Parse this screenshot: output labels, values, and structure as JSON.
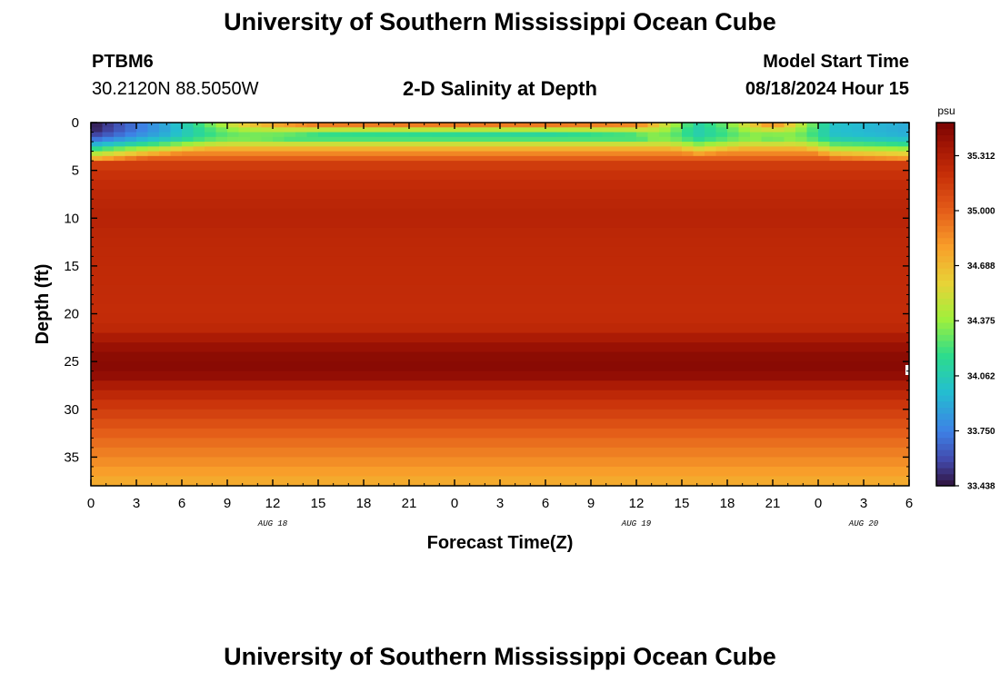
{
  "page_title": "University of Southern Mississippi Ocean Cube",
  "footer_title": "University of Southern Mississippi Ocean Cube",
  "station": {
    "id": "PTBM6",
    "coords": "30.2120N  88.5050W"
  },
  "plot_title": "2-D Salinity at Depth",
  "model_start": {
    "label": "Model Start Time",
    "value": "08/18/2024 Hour 15"
  },
  "chart_data": {
    "type": "heatmap",
    "title": "2-D Salinity at Depth",
    "xlabel": "Forecast Time(Z)",
    "ylabel": "Depth (ft)",
    "x_range_hours": [
      0,
      54
    ],
    "x_tick_labels": [
      "0",
      "3",
      "6",
      "9",
      "12",
      "15",
      "18",
      "21",
      "0",
      "3",
      "6",
      "9",
      "12",
      "15",
      "18",
      "21",
      "0",
      "3",
      "6"
    ],
    "date_labels": [
      {
        "text": "AUG 18",
        "hour": 12
      },
      {
        "text": "AUG 19",
        "hour": 36
      },
      {
        "text": "AUG 20",
        "hour": 51
      }
    ],
    "ylim": [
      0,
      38
    ],
    "y_ticks": [
      0,
      5,
      10,
      15,
      20,
      25,
      30,
      35
    ],
    "y_tick_labels": [
      "0",
      "5",
      "10",
      "15",
      "20",
      "25",
      "30",
      "35"
    ],
    "colorbar": {
      "unit": "psu",
      "min": 33.438,
      "max": 35.5,
      "tick_values": [
        33.438,
        33.75,
        34.062,
        34.375,
        34.688,
        35.0,
        35.312
      ],
      "tick_labels": [
        "33.438",
        "33.750",
        "34.062",
        "34.375",
        "34.688",
        "35.000",
        "35.312"
      ]
    },
    "profile_depths_ft": [
      0,
      0.5,
      1.5,
      2.5,
      3.5,
      4.5,
      6,
      8,
      10,
      12,
      15,
      18,
      20,
      21.5,
      22.5,
      23.5,
      24.5,
      25.5,
      26.5,
      27.5,
      28.5,
      29.5,
      30.5,
      31.5,
      32.5,
      33.5,
      34.5,
      35.5,
      36.5,
      37.5,
      38
    ],
    "profile_salinity_psu": [
      33.6,
      33.75,
      34.1,
      34.65,
      34.95,
      35.15,
      35.22,
      35.26,
      35.28,
      35.25,
      35.24,
      35.23,
      35.22,
      35.25,
      35.33,
      35.4,
      35.44,
      35.45,
      35.42,
      35.33,
      35.25,
      35.18,
      35.12,
      35.06,
      35.0,
      34.95,
      34.9,
      34.85,
      34.8,
      34.75,
      34.72
    ],
    "surface_events": [
      {
        "hour": 0,
        "fresh_depth_ft": 3.3,
        "min_psu": 33.45
      },
      {
        "hour": 5,
        "fresh_depth_ft": 2.3,
        "min_psu": 33.9
      },
      {
        "hour": 10,
        "fresh_depth_ft": 1.0,
        "min_psu": 34.6
      },
      {
        "hour": 15,
        "fresh_depth_ft": 0.3,
        "min_psu": 34.95
      },
      {
        "hour": 30,
        "fresh_depth_ft": 0.2,
        "min_psu": 34.98
      },
      {
        "hour": 36,
        "fresh_depth_ft": 0.4,
        "min_psu": 34.9
      },
      {
        "hour": 40,
        "fresh_depth_ft": 2.5,
        "min_psu": 34.1
      },
      {
        "hour": 42,
        "fresh_depth_ft": 2.0,
        "min_psu": 34.3
      },
      {
        "hour": 45,
        "fresh_depth_ft": 0.6,
        "min_psu": 34.85
      },
      {
        "hour": 49,
        "fresh_depth_ft": 2.8,
        "min_psu": 34.0
      },
      {
        "hour": 54,
        "fresh_depth_ft": 3.2,
        "min_psu": 33.9
      }
    ]
  }
}
